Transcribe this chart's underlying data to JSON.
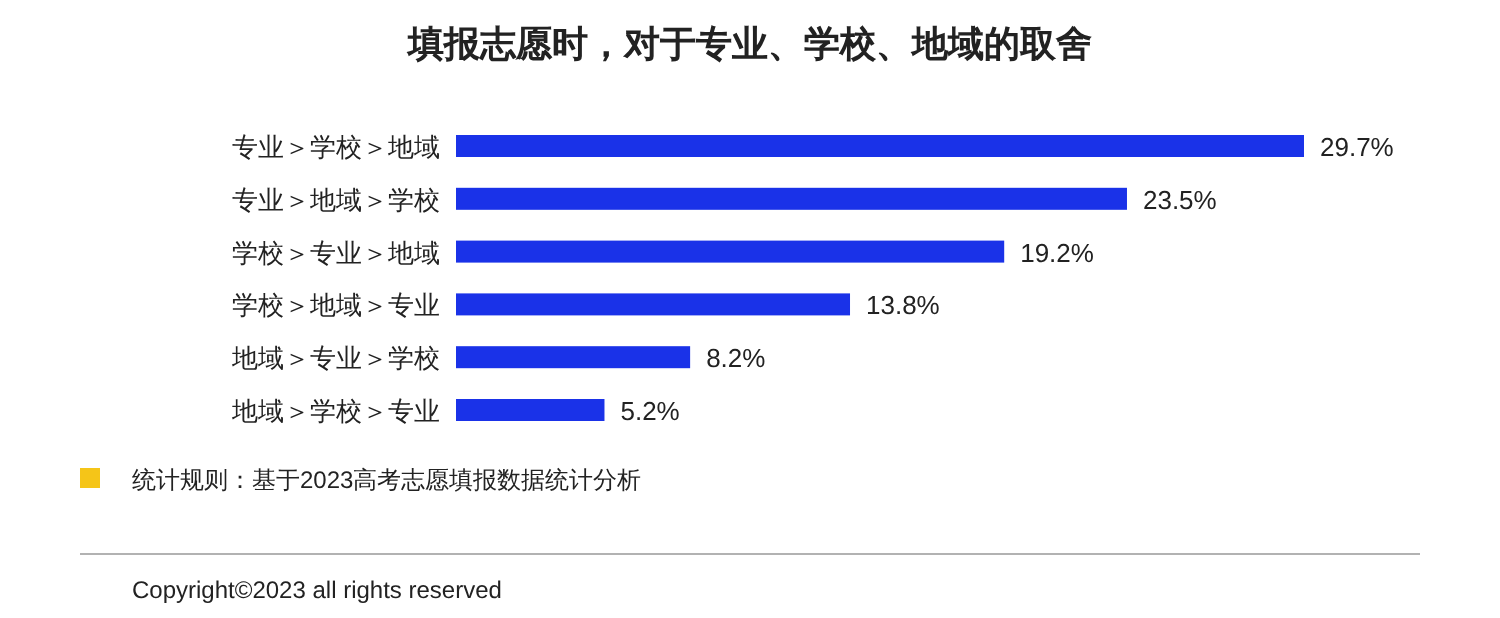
{
  "chart_data": {
    "type": "bar",
    "orientation": "horizontal",
    "title": "填报志愿时，对于专业、学校、地域的取舍",
    "categories": [
      "专业＞学校＞地域",
      "专业＞地域＞学校",
      "学校＞专业＞地域",
      "学校＞地域＞专业",
      "地域＞专业＞学校",
      "地域＞学校＞专业"
    ],
    "values": [
      29.7,
      23.5,
      19.2,
      13.8,
      8.2,
      5.2
    ],
    "value_labels": [
      "29.7%",
      "23.5%",
      "19.2%",
      "13.8%",
      "8.2%",
      "5.2%"
    ],
    "color": "#1a32e8",
    "annotations": [
      "统计规则：基于2023高考志愿填报数据统计分析",
      "Copyright©2023 all rights reserved"
    ]
  }
}
